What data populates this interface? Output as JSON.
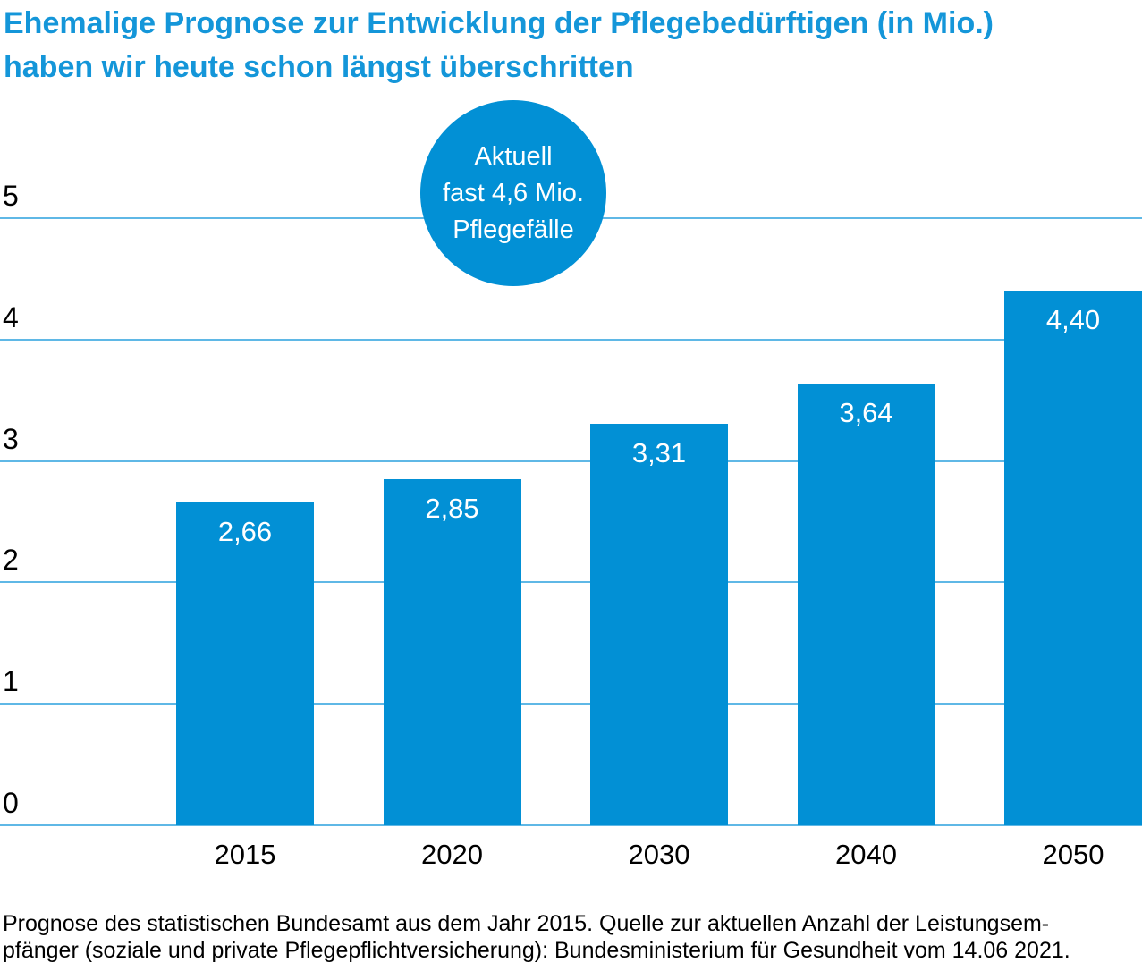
{
  "title": {
    "line1": "Ehemalige Prognose zur Entwicklung der Pflegebedürftigen (in Mio.)",
    "line2": "haben wir heute schon längst überschritten",
    "color": "#1496d9"
  },
  "callout": {
    "line1": "Aktuell",
    "line2": "fast 4,6 Mio.",
    "line3": "Pflegefälle",
    "background_color": "#0290d5",
    "text_color": "#ffffff"
  },
  "chart_data": {
    "type": "bar",
    "title": "Ehemalige Prognose zur Entwicklung der Pflegebedürftigen (in Mio.) haben wir heute schon längst überschritten",
    "categories": [
      "2015",
      "2020",
      "2030",
      "2040",
      "2050"
    ],
    "values": [
      2.66,
      2.85,
      3.31,
      3.64,
      4.4
    ],
    "value_labels": [
      "2,66",
      "2,85",
      "3,31",
      "3,64",
      "4,40"
    ],
    "xlabel": "",
    "ylabel": "",
    "ylim": [
      0,
      5
    ],
    "yticks": [
      0,
      1,
      2,
      3,
      4,
      5
    ],
    "grid": true,
    "legend": false,
    "bar_color": "#0290d5",
    "grid_color": "#5fb8e6",
    "value_label_color": "#ffffff",
    "annotation": "Aktuell fast 4,6 Mio. Pflegefälle"
  },
  "footer": {
    "line1": "Prognose des statistischen Bundesamt aus dem Jahr 2015. Quelle zur aktuellen Anzahl der Leistungsem-",
    "line2": "pfänger (soziale und private Pflegepflichtversicherung): Bundesministerium für Gesundheit vom 14.06 2021."
  }
}
